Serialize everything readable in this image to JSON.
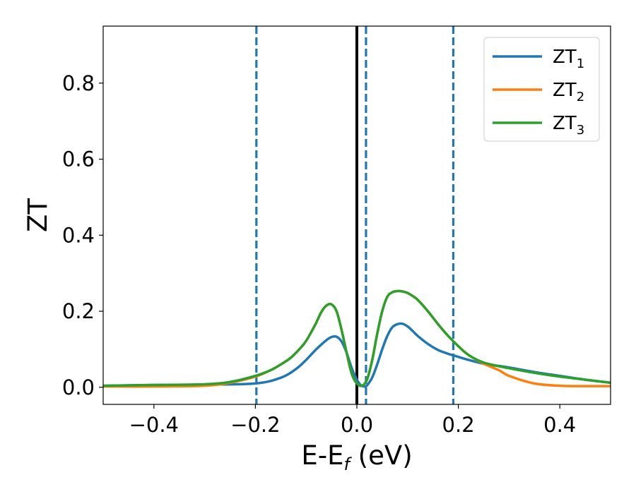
{
  "chart_data": {
    "type": "line",
    "xlabel": "E-E",
    "xlabel_sub": "f",
    "xlabel_unit": " (eV)",
    "ylabel": "ZT",
    "xlim": [
      -0.5,
      0.5
    ],
    "ylim": [
      -0.045,
      0.95
    ],
    "x_ticks": [
      -0.4,
      -0.2,
      0.0,
      0.2,
      0.4
    ],
    "x_tick_labels": [
      "−0.4",
      "−0.2",
      "0.0",
      "0.2",
      "0.4"
    ],
    "y_ticks": [
      0.0,
      0.2,
      0.4,
      0.6,
      0.8
    ],
    "y_tick_labels": [
      "0.0",
      "0.2",
      "0.4",
      "0.6",
      "0.8"
    ],
    "grid": false,
    "legend_position": "top-right",
    "vertical_lines": [
      {
        "x": -0.198,
        "style": "dashed",
        "color": "#1f77b4"
      },
      {
        "x": 0.0,
        "style": "solid",
        "color": "#000000"
      },
      {
        "x": 0.018,
        "style": "dashed",
        "color": "#1f77b4"
      },
      {
        "x": 0.19,
        "style": "dashed",
        "color": "#1f77b4"
      }
    ],
    "series": [
      {
        "name": "ZT",
        "sub": "1",
        "color": "#1f77b4",
        "x": [
          -0.5,
          -0.4,
          -0.3,
          -0.2,
          -0.15,
          -0.12,
          -0.1,
          -0.08,
          -0.06,
          -0.05,
          -0.04,
          -0.03,
          -0.02,
          -0.01,
          0.0,
          0.008,
          0.015,
          0.02,
          0.03,
          0.04,
          0.05,
          0.06,
          0.07,
          0.08,
          0.09,
          0.1,
          0.11,
          0.12,
          0.14,
          0.16,
          0.18,
          0.2,
          0.22,
          0.25,
          0.3,
          0.35,
          0.4,
          0.45,
          0.5
        ],
        "y": [
          0.004,
          0.006,
          0.007,
          0.01,
          0.025,
          0.048,
          0.072,
          0.1,
          0.124,
          0.132,
          0.133,
          0.12,
          0.09,
          0.05,
          0.02,
          0.005,
          0.002,
          0.005,
          0.025,
          0.06,
          0.1,
          0.135,
          0.158,
          0.166,
          0.167,
          0.16,
          0.148,
          0.135,
          0.114,
          0.098,
          0.088,
          0.08,
          0.072,
          0.062,
          0.052,
          0.04,
          0.03,
          0.02,
          0.012
        ]
      },
      {
        "name": "ZT",
        "sub": "2",
        "color": "#ff7f0e",
        "x": [
          -0.5,
          -0.4,
          -0.3,
          -0.25,
          -0.2,
          -0.17,
          -0.15,
          -0.13,
          -0.11,
          -0.1,
          -0.09,
          -0.08,
          -0.07,
          -0.06,
          -0.05,
          -0.04,
          -0.03,
          -0.02,
          -0.01,
          0.0,
          0.01,
          0.02,
          0.03,
          0.04,
          0.05,
          0.06,
          0.07,
          0.08,
          0.09,
          0.1,
          0.11,
          0.12,
          0.14,
          0.16,
          0.18,
          0.2,
          0.22,
          0.25,
          0.28,
          0.3,
          0.35,
          0.4,
          0.45,
          0.5
        ],
        "y": [
          0.002,
          0.002,
          0.004,
          0.012,
          0.028,
          0.045,
          0.06,
          0.078,
          0.105,
          0.122,
          0.145,
          0.17,
          0.198,
          0.215,
          0.218,
          0.2,
          0.15,
          0.09,
          0.035,
          0.01,
          0.004,
          0.02,
          0.07,
          0.14,
          0.2,
          0.238,
          0.25,
          0.253,
          0.252,
          0.248,
          0.24,
          0.23,
          0.2,
          0.166,
          0.135,
          0.108,
          0.085,
          0.062,
          0.045,
          0.03,
          0.01,
          0.004,
          0.003,
          0.003
        ]
      },
      {
        "name": "ZT",
        "sub": "3",
        "color": "#2ca02c",
        "x": [
          -0.5,
          -0.4,
          -0.3,
          -0.25,
          -0.2,
          -0.17,
          -0.15,
          -0.13,
          -0.11,
          -0.1,
          -0.09,
          -0.08,
          -0.07,
          -0.06,
          -0.05,
          -0.04,
          -0.03,
          -0.02,
          -0.01,
          0.0,
          0.01,
          0.02,
          0.03,
          0.04,
          0.05,
          0.06,
          0.07,
          0.08,
          0.09,
          0.1,
          0.11,
          0.12,
          0.14,
          0.16,
          0.18,
          0.2,
          0.22,
          0.25,
          0.3,
          0.35,
          0.4,
          0.45,
          0.5
        ],
        "y": [
          0.004,
          0.006,
          0.008,
          0.014,
          0.03,
          0.045,
          0.06,
          0.078,
          0.105,
          0.122,
          0.145,
          0.17,
          0.198,
          0.215,
          0.218,
          0.2,
          0.15,
          0.09,
          0.035,
          0.01,
          0.004,
          0.02,
          0.07,
          0.14,
          0.2,
          0.238,
          0.25,
          0.253,
          0.252,
          0.248,
          0.24,
          0.23,
          0.2,
          0.166,
          0.135,
          0.108,
          0.085,
          0.065,
          0.05,
          0.038,
          0.028,
          0.02,
          0.012
        ]
      }
    ]
  }
}
